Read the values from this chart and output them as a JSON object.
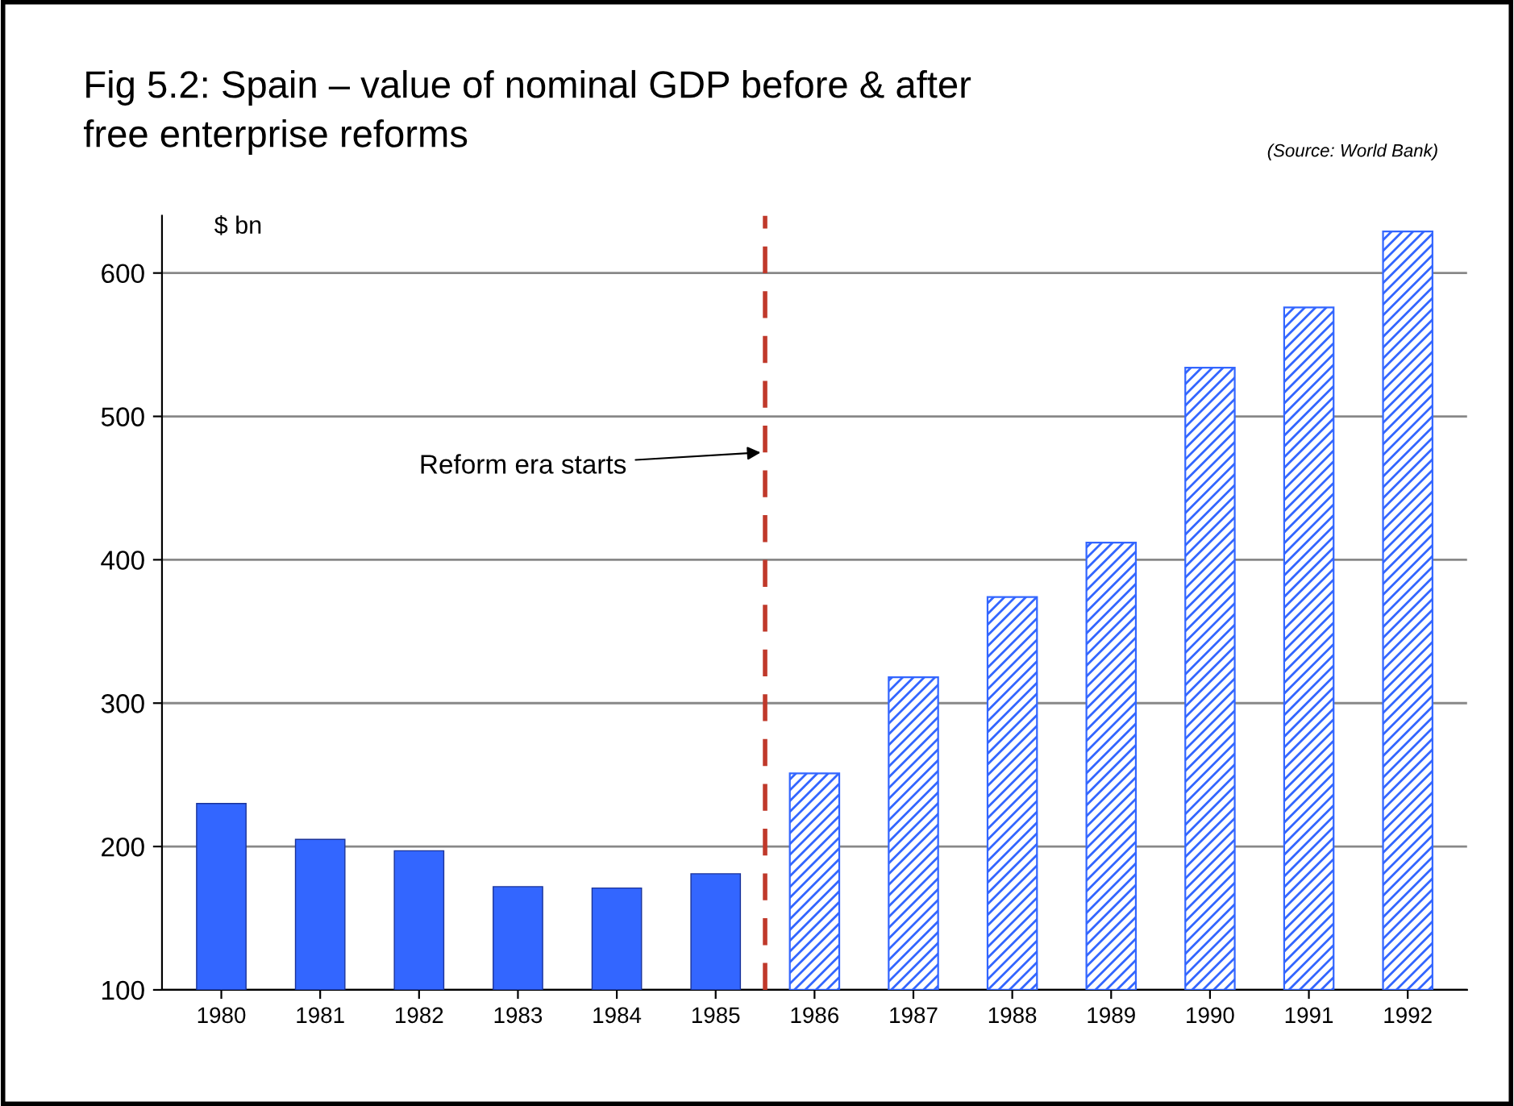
{
  "chart_data": {
    "type": "bar",
    "title": "Fig 5.2: Spain – value of nominal GDP before & after\nfree enterprise reforms",
    "ylabel": "$ bn",
    "x": [
      1980,
      1981,
      1982,
      1983,
      1984,
      1985,
      1986,
      1987,
      1988,
      1989,
      1990,
      1991,
      1992
    ],
    "series": [
      {
        "color": "#3366ff",
        "values": [
          230,
          205,
          197,
          172,
          171,
          181,
          null,
          null,
          null,
          null,
          null,
          null,
          null
        ]
      },
      {
        "color": "#3366ff",
        "values": [
          null,
          null,
          null,
          null,
          null,
          null,
          251,
          318,
          374,
          412,
          534,
          576,
          629
        ]
      }
    ],
    "xlim": [
      1979.4,
      1992.6
    ],
    "xticks": [
      1980,
      1981,
      1982,
      1983,
      1984,
      1985,
      1986,
      1987,
      1988,
      1989,
      1990,
      1991,
      1992
    ],
    "ylim": [
      100,
      640
    ],
    "yticks": [
      100,
      200,
      300,
      400,
      500,
      600
    ],
    "grid": "y",
    "ref_lines": [
      {
        "axis": "x",
        "value": 1985.5,
        "color": "#c0392b",
        "line_style": "dashed"
      }
    ],
    "annotations": [
      {
        "text": "Reform era starts",
        "x": 1985.5,
        "y": 475
      },
      "(Source: World Bank)"
    ]
  }
}
